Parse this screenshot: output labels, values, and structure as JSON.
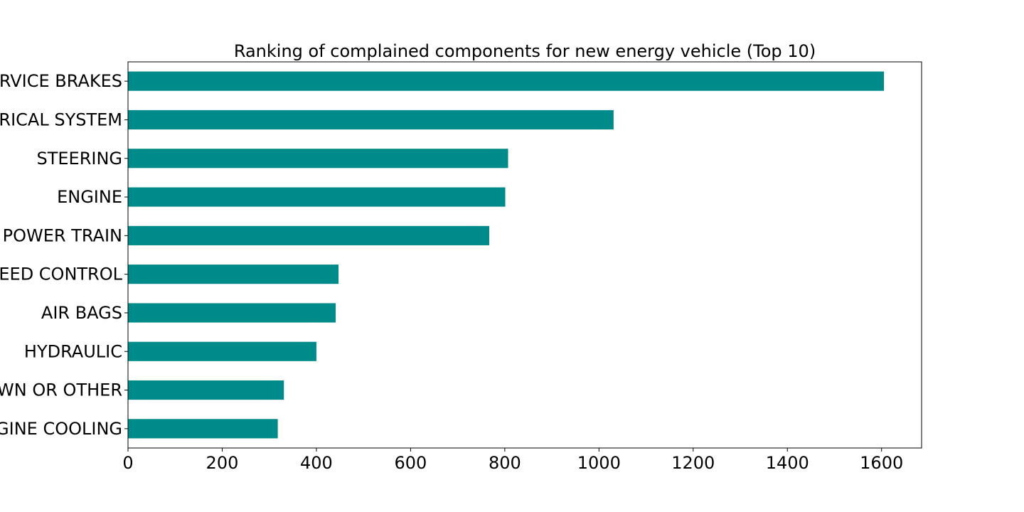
{
  "chart_data": {
    "type": "bar",
    "orientation": "horizontal",
    "title": "Ranking of complained components for new energy vehicle (Top 10)",
    "xlabel": "",
    "ylabel": "",
    "categories": [
      "RVICE BRAKES",
      "RICAL SYSTEM",
      "STEERING",
      "ENGINE",
      "POWER TRAIN",
      "EED CONTROL",
      "AIR BAGS",
      "HYDRAULIC",
      "WN OR OTHER",
      "GINE COOLING"
    ],
    "values": [
      1605,
      1031,
      807,
      801,
      767,
      447,
      441,
      400,
      331,
      318
    ],
    "xlim": [
      0,
      1685
    ],
    "xticks": [
      "0",
      "200",
      "400",
      "600",
      "800",
      "1000",
      "1200",
      "1400",
      "1600"
    ],
    "grid": false,
    "legend": "none",
    "bar_color": "#008b8b"
  }
}
